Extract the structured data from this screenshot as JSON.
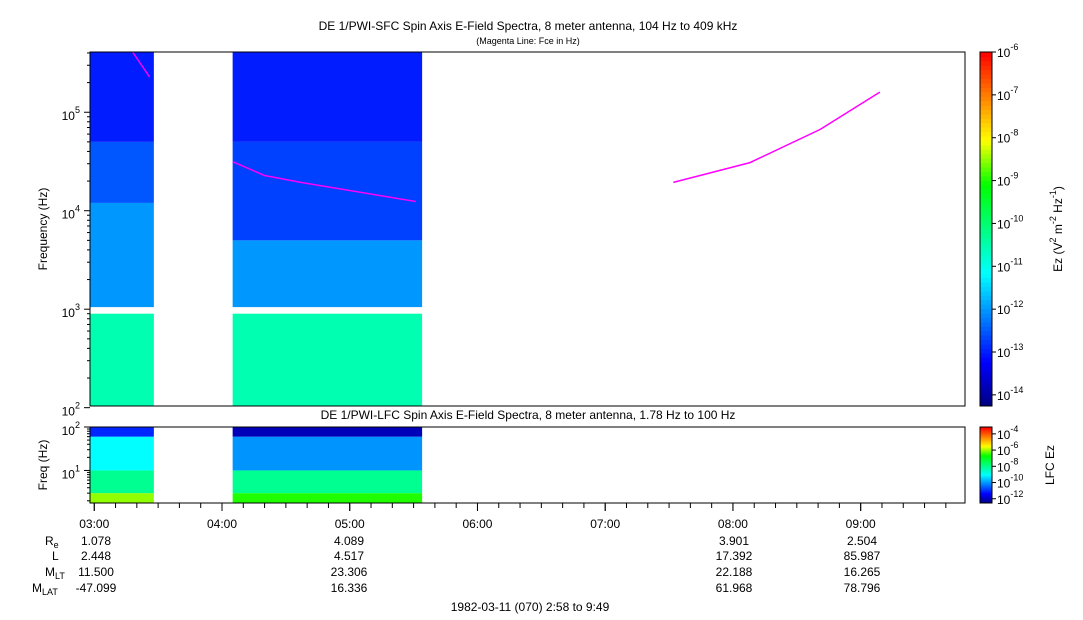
{
  "chart_data": [
    {
      "type": "spectrogram",
      "title": "DE 1/PWI-SFC  Spin Axis E-Field Spectra, 8 meter antenna, 104 Hz to 409 kHz",
      "subtitle": "(Magenta Line: Fce in Hz)",
      "ylabel": "Frequency (Hz)",
      "xlim": [
        "02:58",
        "09:49"
      ],
      "yscale": "log",
      "ylim": [
        104,
        409000
      ],
      "yticks": [
        {
          "value": 100,
          "label": "10",
          "exp": 2
        },
        {
          "value": 1000,
          "label": "10",
          "exp": 3
        },
        {
          "value": 10000,
          "label": "10",
          "exp": 4
        },
        {
          "value": 100000,
          "label": "10",
          "exp": 5
        }
      ],
      "colormap": [
        "#000080",
        "#0000ff",
        "#0080ff",
        "#00ffff",
        "#00ff80",
        "#00ff00",
        "#ffff00",
        "#ff8000",
        "#ff0000"
      ],
      "clim": [
        5.5e-15,
        1e-06
      ],
      "cticks": [
        {
          "value": 1e-06,
          "label": "10",
          "exp": -6
        },
        {
          "value": 1e-07,
          "label": "10",
          "exp": -7
        },
        {
          "value": 1e-08,
          "label": "10",
          "exp": -8
        },
        {
          "value": 1e-09,
          "label": "10",
          "exp": -9
        },
        {
          "value": 1e-10,
          "label": "10",
          "exp": -10
        },
        {
          "value": 1e-11,
          "label": "10",
          "exp": -11
        },
        {
          "value": 1e-12,
          "label": "10",
          "exp": -12
        },
        {
          "value": 1e-13,
          "label": "10",
          "exp": -13
        },
        {
          "value": 1e-14,
          "label": "10",
          "exp": -14
        }
      ],
      "clabel": [
        {
          "t": "Ez (V"
        },
        {
          "sup": "2"
        },
        {
          "t": " m"
        },
        {
          "sup": "-2"
        },
        {
          "t": " Hz"
        },
        {
          "sup": "-1"
        },
        {
          "t": ")"
        }
      ],
      "segments": [
        {
          "start": "02:58",
          "end": "03:28",
          "bands": [
            {
              "lo": 104,
              "hi": 900,
              "level": 3e-11
            },
            {
              "lo": 1050,
              "hi": 12000,
              "level": 1e-12
            },
            {
              "lo": 12000,
              "hi": 50000,
              "level": 3e-13
            },
            {
              "lo": 50000,
              "hi": 409000,
              "level": 1e-13
            }
          ]
        },
        {
          "start": "04:05",
          "end": "05:34",
          "bands": [
            {
              "lo": 104,
              "hi": 900,
              "level": 3e-11
            },
            {
              "lo": 1050,
              "hi": 5000,
              "level": 1e-12
            },
            {
              "lo": 5000,
              "hi": 50000,
              "level": 2e-13
            },
            {
              "lo": 50000,
              "hi": 409000,
              "level": 1e-13
            }
          ]
        }
      ],
      "series": [
        {
          "name": "Fce",
          "color": "#ff00ff",
          "x": [
            "03:18",
            "03:26",
            null,
            "04:05",
            "04:20",
            "04:37",
            "05:31",
            null,
            "07:32",
            "08:08",
            "08:41",
            "09:09"
          ],
          "values": [
            409000,
            228000,
            null,
            31500,
            22800,
            19400,
            12400,
            null,
            19400,
            30800,
            67000,
            160000
          ]
        }
      ]
    },
    {
      "type": "spectrogram",
      "title": "DE 1/PWI-LFC  Spin Axis E-Field Spectra, 8 meter antenna, 1.78 Hz to 100 Hz",
      "ylabel": "Freq (Hz)",
      "xlim": [
        "02:58",
        "09:49"
      ],
      "xticks": [
        "03:00",
        "04:00",
        "05:00",
        "06:00",
        "07:00",
        "08:00",
        "09:00"
      ],
      "yscale": "log",
      "ylim": [
        1.78,
        100
      ],
      "yticks": [
        {
          "value": 10,
          "label": "10",
          "exp": 1
        },
        {
          "value": 100,
          "label": "10",
          "exp": 2
        }
      ],
      "colormap": [
        "#000080",
        "#0000ff",
        "#0080ff",
        "#00ffff",
        "#00ff80",
        "#00ff00",
        "#ffff00",
        "#ff8000",
        "#ff0000"
      ],
      "clim": [
        3e-13,
        0.0007
      ],
      "cticks": [
        {
          "value": 0.0001,
          "label": "10",
          "exp": -4
        },
        {
          "value": 1e-06,
          "label": "10",
          "exp": -6
        },
        {
          "value": 1e-08,
          "label": "10",
          "exp": -8
        },
        {
          "value": 1e-10,
          "label": "10",
          "exp": -10
        },
        {
          "value": 1e-12,
          "label": "10",
          "exp": -12
        }
      ],
      "clabel": [
        {
          "t": "LFC Ez"
        }
      ],
      "segments": [
        {
          "start": "02:58",
          "end": "03:28",
          "bands": [
            {
              "lo": 1.78,
              "hi": 3,
              "level": 1e-06
            },
            {
              "lo": 3,
              "hi": 10,
              "level": 1e-08
            },
            {
              "lo": 10,
              "hi": 60,
              "level": 1e-09
            },
            {
              "lo": 60,
              "hi": 100,
              "level": 1e-11
            }
          ]
        },
        {
          "start": "04:05",
          "end": "05:34",
          "bands": [
            {
              "lo": 1.78,
              "hi": 3,
              "level": 3e-07
            },
            {
              "lo": 3,
              "hi": 10,
              "level": 1e-08
            },
            {
              "lo": 10,
              "hi": 60,
              "level": 1e-10
            },
            {
              "lo": 60,
              "hi": 100,
              "level": 1e-12
            }
          ]
        }
      ]
    }
  ],
  "ephemeris": {
    "rows": [
      {
        "label": "R",
        "sub": "e",
        "values": [
          "1.078",
          "4.089",
          "3.901",
          "2.504"
        ]
      },
      {
        "label": "L",
        "values": [
          "2.448",
          "4.517",
          "17.392",
          "85.987"
        ]
      },
      {
        "label": "M",
        "sub": "LT",
        "values": [
          "11.500",
          "23.306",
          "22.188",
          "16.265"
        ]
      },
      {
        "label": "M",
        "sub": "LAT",
        "values": [
          "-47.099",
          "16.336",
          "61.968",
          "78.796"
        ]
      }
    ]
  },
  "footer": "1982-03-11 (070) 2:58 to 9:49"
}
